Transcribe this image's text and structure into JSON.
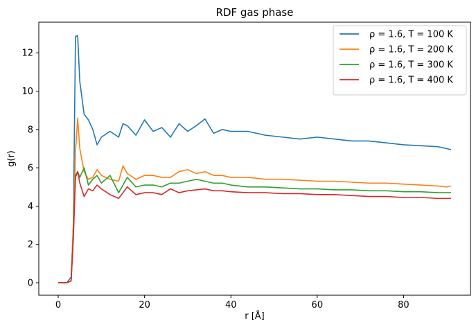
{
  "chart_data": {
    "type": "line",
    "title": "RDF gas phase",
    "xlabel": "r  [Å]",
    "ylabel": "g(r)",
    "xlim": [
      -4.5,
      95.5
    ],
    "ylim": [
      -0.65,
      13.6
    ],
    "xticks": [
      0,
      20,
      40,
      60,
      80
    ],
    "yticks": [
      0,
      2,
      4,
      6,
      8,
      10,
      12
    ],
    "grid": false,
    "legend_position": "top-right",
    "x": [
      0,
      1,
      2,
      3,
      3.5,
      4,
      4.5,
      5,
      6,
      7,
      8,
      9,
      10,
      12,
      14,
      15,
      16,
      18,
      20,
      22,
      24,
      26,
      28,
      30,
      32,
      34,
      36,
      38,
      40,
      44,
      48,
      52,
      56,
      60,
      64,
      68,
      72,
      76,
      80,
      84,
      88,
      90,
      91
    ],
    "series": [
      {
        "name": "ρ = 1.6, T = 100 K",
        "color": "#1f77b4",
        "values": [
          0,
          0,
          0,
          0.3,
          3.0,
          12.85,
          12.9,
          10.5,
          8.8,
          8.5,
          8.0,
          7.2,
          7.6,
          7.9,
          7.6,
          8.3,
          8.2,
          7.7,
          8.5,
          7.9,
          8.1,
          7.6,
          8.3,
          7.9,
          8.2,
          8.55,
          7.8,
          8.0,
          7.9,
          7.9,
          7.7,
          7.6,
          7.5,
          7.6,
          7.5,
          7.4,
          7.4,
          7.3,
          7.2,
          7.15,
          7.1,
          7.0,
          6.95
        ]
      },
      {
        "name": "ρ = 1.6, T = 200 K",
        "color": "#ff7f0e",
        "values": [
          0,
          0,
          0,
          0.1,
          3.0,
          6.8,
          8.6,
          7.0,
          5.8,
          5.4,
          5.5,
          5.9,
          5.6,
          5.4,
          5.3,
          6.1,
          5.7,
          5.4,
          5.6,
          5.6,
          5.5,
          5.5,
          5.8,
          5.9,
          5.7,
          5.8,
          5.6,
          5.6,
          5.5,
          5.5,
          5.4,
          5.4,
          5.35,
          5.3,
          5.3,
          5.25,
          5.2,
          5.2,
          5.15,
          5.1,
          5.05,
          5.0,
          5.05
        ]
      },
      {
        "name": "ρ = 1.6, T = 300 K",
        "color": "#2ca02c",
        "values": [
          0,
          0,
          0,
          0.1,
          2.5,
          5.6,
          5.8,
          5.5,
          6.0,
          5.1,
          5.4,
          5.6,
          5.2,
          5.6,
          4.7,
          5.1,
          5.5,
          5.0,
          5.1,
          5.1,
          5.0,
          5.2,
          5.2,
          5.3,
          5.4,
          5.3,
          5.2,
          5.2,
          5.1,
          5.0,
          5.0,
          4.95,
          4.9,
          4.9,
          4.85,
          4.85,
          4.8,
          4.8,
          4.75,
          4.75,
          4.7,
          4.7,
          4.7
        ]
      },
      {
        "name": "ρ = 1.6, T = 400 K",
        "color": "#d62728",
        "values": [
          0,
          0,
          0,
          0.1,
          2.3,
          5.5,
          5.8,
          5.2,
          4.5,
          4.9,
          4.8,
          5.1,
          4.9,
          4.6,
          4.4,
          4.7,
          5.0,
          4.6,
          4.7,
          4.7,
          4.6,
          4.9,
          4.7,
          4.8,
          4.85,
          4.9,
          4.8,
          4.8,
          4.75,
          4.7,
          4.7,
          4.65,
          4.65,
          4.6,
          4.6,
          4.55,
          4.5,
          4.5,
          4.45,
          4.45,
          4.4,
          4.4,
          4.4
        ]
      }
    ]
  }
}
